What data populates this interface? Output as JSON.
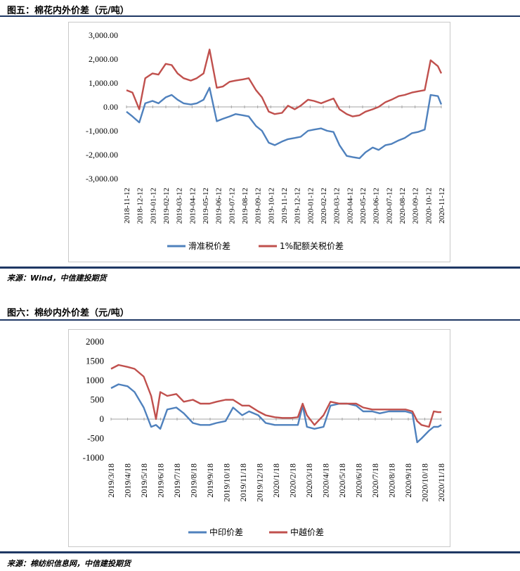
{
  "figures": [
    {
      "title": "图五：棉花内外价差（元/吨）",
      "source": "来源：Wind，中信建投期货"
    },
    {
      "title": "图六：棉纱内外价差（元/吨）",
      "source": "来源：棉纺织信息网，中信建投期货"
    }
  ],
  "chart_data": [
    {
      "type": "line",
      "title": "图五：棉花内外价差（元/吨）",
      "y_tick_labels": [
        "3,000.00",
        "2,000.00",
        "1,000.00",
        "0.00",
        "-1,000.00",
        "-2,000.00",
        "-3,000.00"
      ],
      "ylim": [
        -3000,
        3000
      ],
      "x_tick_labels": [
        "2018-11-12",
        "2018-12-12",
        "2019-01-12",
        "2019-02-12",
        "2019-03-12",
        "2019-04-12",
        "2019-05-12",
        "2019-06-12",
        "2019-07-12",
        "2019-08-12",
        "2019-09-12",
        "2019-10-12",
        "2019-11-12",
        "2019-12-12",
        "2020-01-12",
        "2020-02-12",
        "2020-03-12",
        "2020-04-12",
        "2020-05-12",
        "2020-06-12",
        "2020-07-12",
        "2020-08-12",
        "2020-09-12",
        "2020-10-12",
        "2020-11-12"
      ],
      "legend_position": "bottom",
      "grid": false,
      "x": [
        "2018-11-12",
        "2018-11-26",
        "2018-12-12",
        "2018-12-26",
        "2019-01-12",
        "2019-01-26",
        "2019-02-12",
        "2019-02-26",
        "2019-03-12",
        "2019-03-26",
        "2019-04-12",
        "2019-04-26",
        "2019-05-12",
        "2019-05-26",
        "2019-06-12",
        "2019-06-26",
        "2019-07-12",
        "2019-07-26",
        "2019-08-12",
        "2019-08-26",
        "2019-09-12",
        "2019-09-26",
        "2019-10-12",
        "2019-10-26",
        "2019-11-12",
        "2019-11-26",
        "2019-12-12",
        "2019-12-26",
        "2020-01-12",
        "2020-01-26",
        "2020-02-12",
        "2020-02-26",
        "2020-03-12",
        "2020-03-26",
        "2020-04-12",
        "2020-04-26",
        "2020-05-12",
        "2020-05-26",
        "2020-06-12",
        "2020-06-26",
        "2020-07-12",
        "2020-07-26",
        "2020-08-12",
        "2020-08-26",
        "2020-09-12",
        "2020-09-26",
        "2020-10-12",
        "2020-10-26",
        "2020-11-12",
        "2020-11-20"
      ],
      "series": [
        {
          "name": "滑准税价差",
          "color": "#4f81bd",
          "values": [
            -200,
            -400,
            -650,
            150,
            250,
            150,
            400,
            500,
            300,
            150,
            100,
            150,
            300,
            800,
            -600,
            -500,
            -400,
            -300,
            -350,
            -400,
            -800,
            -1000,
            -1500,
            -1600,
            -1450,
            -1350,
            -1300,
            -1250,
            -1000,
            -950,
            -900,
            -1000,
            -1050,
            -1600,
            -2050,
            -2100,
            -2150,
            -1900,
            -1700,
            -1800,
            -1600,
            -1550,
            -1400,
            -1300,
            -1100,
            -1050,
            -950,
            500,
            450,
            100
          ]
        },
        {
          "name": "1%配额关税价差",
          "color": "#c0504d",
          "values": [
            700,
            600,
            -100,
            1200,
            1400,
            1350,
            1800,
            1750,
            1400,
            1200,
            1100,
            1200,
            1400,
            2400,
            800,
            850,
            1050,
            1100,
            1150,
            1200,
            700,
            400,
            -200,
            -300,
            -250,
            50,
            -100,
            50,
            300,
            250,
            150,
            250,
            350,
            -100,
            -300,
            -400,
            -350,
            -200,
            -100,
            0,
            200,
            300,
            450,
            500,
            600,
            650,
            700,
            1950,
            1700,
            1400
          ]
        }
      ]
    },
    {
      "type": "line",
      "title": "图六：棉纱内外价差（元/吨）",
      "y_tick_labels": [
        "2000",
        "1500",
        "1000",
        "500",
        "0",
        "-500",
        "-1000"
      ],
      "ylim": [
        -1000,
        2000
      ],
      "x_tick_labels": [
        "2019/3/18",
        "2019/4/18",
        "2019/5/18",
        "2019/6/18",
        "2019/7/18",
        "2019/8/18",
        "2019/9/18",
        "2019/10/18",
        "2019/11/18",
        "2019/12/18",
        "2020/1/18",
        "2020/2/18",
        "2020/3/18",
        "2020/4/18",
        "2020/5/18",
        "2020/6/18",
        "2020/7/18",
        "2020/8/18",
        "2020/9/18",
        "2020/10/18",
        "2020/11/18"
      ],
      "legend_position": "bottom",
      "grid": false,
      "x": [
        "2019-03-18",
        "2019-04-01",
        "2019-04-18",
        "2019-05-01",
        "2019-05-18",
        "2019-06-01",
        "2019-06-10",
        "2019-06-18",
        "2019-07-01",
        "2019-07-18",
        "2019-08-01",
        "2019-08-18",
        "2019-09-01",
        "2019-09-18",
        "2019-10-01",
        "2019-10-18",
        "2019-11-01",
        "2019-11-18",
        "2019-12-01",
        "2019-12-18",
        "2020-01-01",
        "2020-01-18",
        "2020-02-01",
        "2020-02-18",
        "2020-03-01",
        "2020-03-10",
        "2020-03-18",
        "2020-04-01",
        "2020-04-18",
        "2020-05-01",
        "2020-05-18",
        "2020-06-01",
        "2020-06-18",
        "2020-07-01",
        "2020-07-18",
        "2020-08-01",
        "2020-08-18",
        "2020-09-01",
        "2020-09-18",
        "2020-10-01",
        "2020-10-10",
        "2020-10-18",
        "2020-11-01",
        "2020-11-10",
        "2020-11-18",
        "2020-11-24"
      ],
      "series": [
        {
          "name": "中印价差",
          "color": "#4f81bd",
          "values": [
            800,
            900,
            850,
            700,
            300,
            -200,
            -150,
            -250,
            250,
            300,
            150,
            -100,
            -150,
            -150,
            -100,
            -50,
            300,
            100,
            200,
            100,
            -100,
            -150,
            -150,
            -150,
            -150,
            350,
            -200,
            -250,
            -200,
            350,
            400,
            400,
            350,
            200,
            200,
            150,
            200,
            200,
            200,
            150,
            -600,
            -500,
            -300,
            -200,
            -200,
            -150
          ]
        },
        {
          "name": "中越价差",
          "color": "#c0504d",
          "values": [
            1300,
            1400,
            1350,
            1300,
            1100,
            600,
            0,
            700,
            600,
            650,
            450,
            500,
            400,
            400,
            450,
            500,
            500,
            350,
            350,
            200,
            100,
            50,
            30,
            30,
            50,
            400,
            100,
            -150,
            100,
            450,
            400,
            400,
            400,
            300,
            250,
            250,
            250,
            250,
            250,
            200,
            -50,
            -150,
            -200,
            200,
            180,
            180
          ]
        }
      ]
    }
  ]
}
